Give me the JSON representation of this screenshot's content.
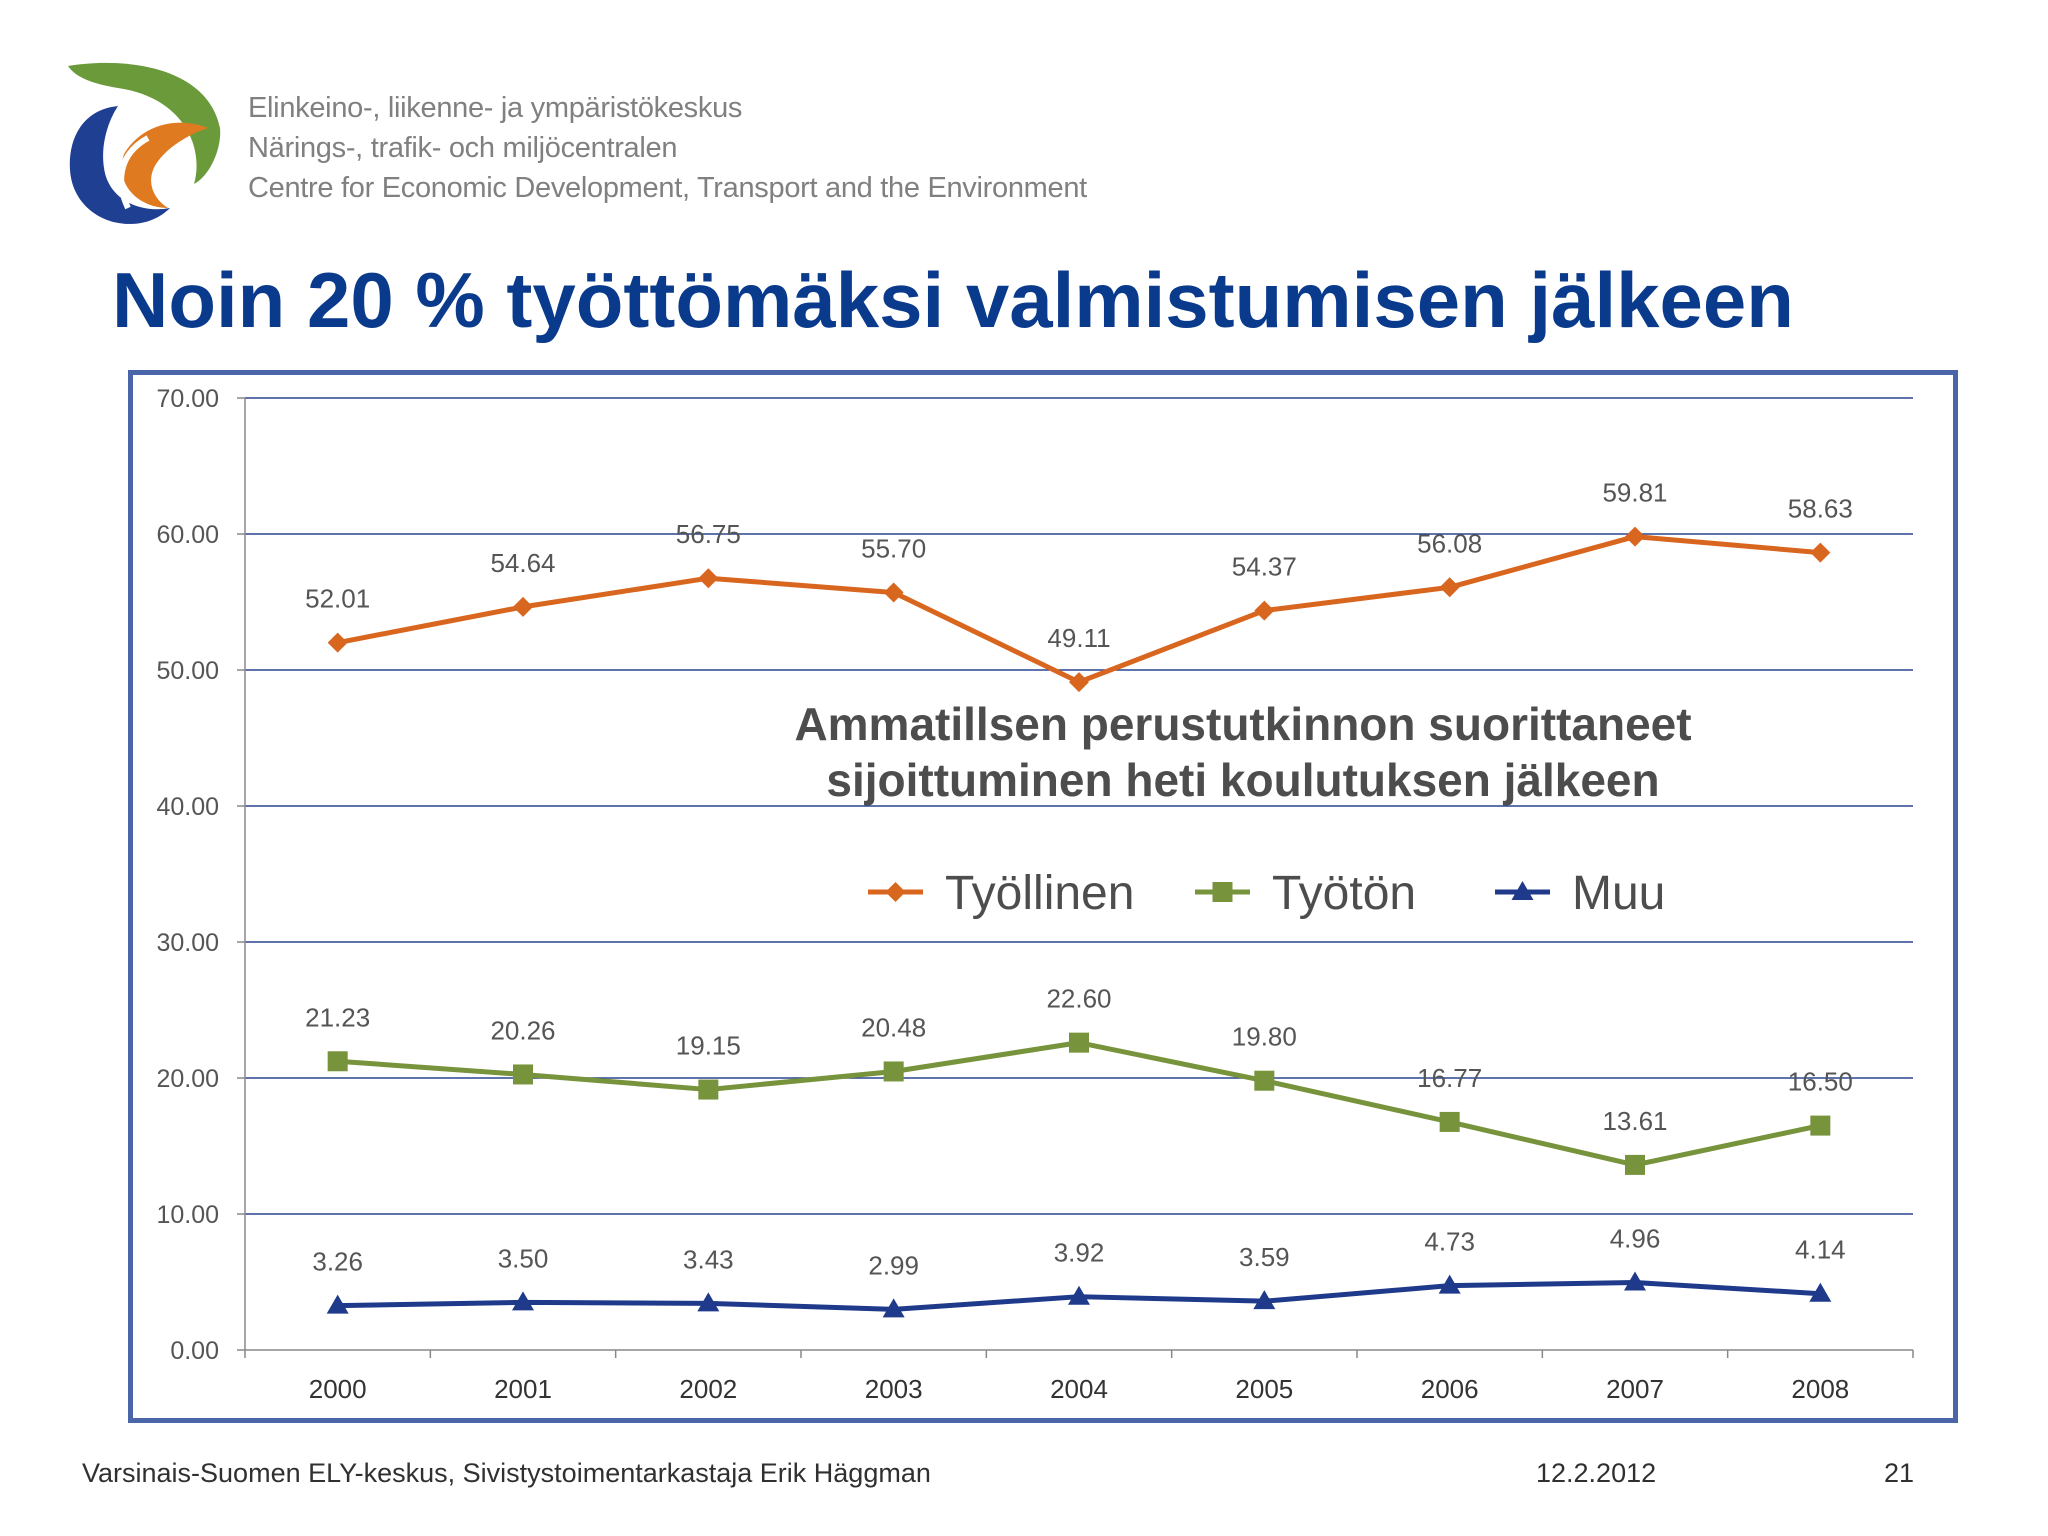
{
  "header": {
    "org_lines": [
      "Elinkeino-, liikenne- ja ympäristökeskus",
      "Närings-, trafik- och miljöcentralen",
      "Centre for Economic Development, Transport and the Environment"
    ],
    "logo_colors": {
      "green": "#6a9a3a",
      "orange": "#e07a20",
      "blue": "#1f3f93"
    }
  },
  "slide": {
    "title": "Noin 20 % työttömäksi valmistumisen jälkeen"
  },
  "footer": {
    "source": "Varsinais-Suomen ELY-keskus, Sivistystoimentarkastaja Erik Häggman",
    "date": "12.2.2012",
    "page": "21"
  },
  "chart_data": {
    "type": "line",
    "title_lines": [
      "Ammatillsen perustutkinnon suorittaneet",
      "sijoittuminen heti koulutuksen jälkeen"
    ],
    "categories": [
      "2000",
      "2001",
      "2002",
      "2003",
      "2004",
      "2005",
      "2006",
      "2007",
      "2008"
    ],
    "ylim": [
      0,
      70
    ],
    "yticks": [
      "0.00",
      "10.00",
      "20.00",
      "30.00",
      "40.00",
      "50.00",
      "60.00",
      "70.00"
    ],
    "grid": true,
    "legend_position": "center",
    "series": [
      {
        "name": "Työllinen",
        "color": "#d9661f",
        "marker": "diamond",
        "values": [
          52.01,
          54.64,
          56.75,
          55.7,
          49.11,
          54.37,
          56.08,
          59.81,
          58.63
        ],
        "labels": [
          "52.01",
          "54.64",
          "56.75",
          "55.70",
          "49.11",
          "54.37",
          "56.08",
          "59.81",
          "58.63"
        ]
      },
      {
        "name": "Työtön",
        "color": "#77933c",
        "marker": "square",
        "values": [
          21.23,
          20.26,
          19.15,
          20.48,
          22.6,
          19.8,
          16.77,
          13.61,
          16.5
        ],
        "labels": [
          "21.23",
          "20.26",
          "19.15",
          "20.48",
          "22.60",
          "19.80",
          "16.77",
          "13.61",
          "16.50"
        ]
      },
      {
        "name": "Muu",
        "color": "#1f3a8a",
        "marker": "triangle",
        "values": [
          3.26,
          3.5,
          3.43,
          2.99,
          3.92,
          3.59,
          4.73,
          4.96,
          4.14
        ],
        "labels": [
          "3.26",
          "3.50",
          "3.43",
          "2.99",
          "3.92",
          "3.59",
          "4.73",
          "4.96",
          "4.14"
        ]
      }
    ]
  }
}
